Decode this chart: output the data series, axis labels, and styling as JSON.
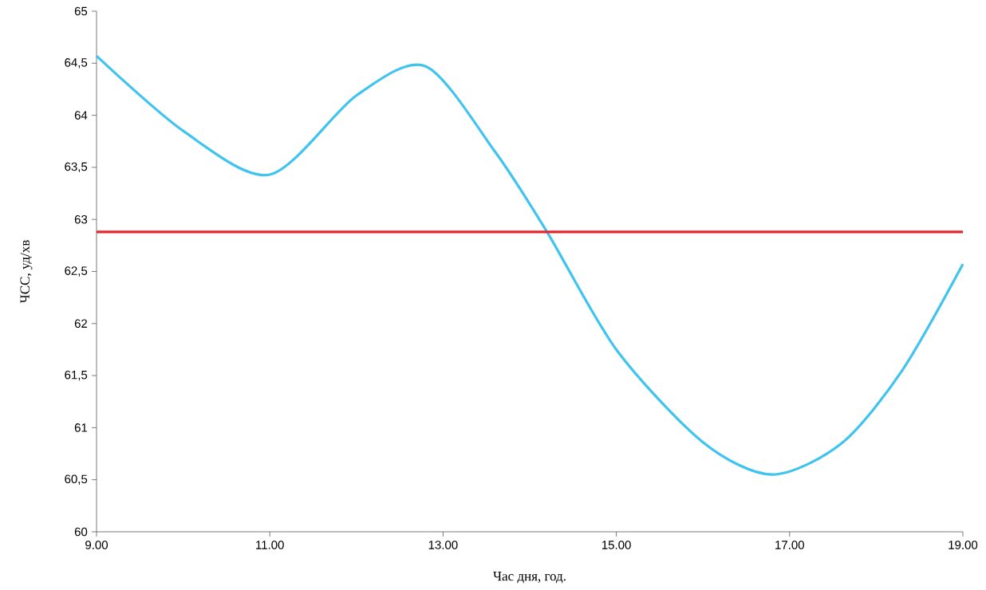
{
  "chart_data": {
    "type": "line",
    "xlabel": "Час дня, год.",
    "ylabel": "ЧСС, уд/хв",
    "series": [
      {
        "color": "#3fc3ef",
        "x": [
          9,
          10,
          11,
          12,
          12.8,
          13.6,
          14.2,
          15,
          16,
          16.8,
          17.6,
          18.3,
          19
        ],
        "values": [
          64.57,
          63.85,
          63.43,
          64.19,
          64.47,
          63.65,
          62.88,
          61.75,
          60.86,
          60.55,
          60.85,
          61.55,
          62.57
        ]
      }
    ],
    "ref_lines": [
      {
        "axis": "y",
        "value": 62.88,
        "color": "#e8262a"
      }
    ],
    "xlim": [
      9,
      19
    ],
    "ylim": [
      60,
      65
    ],
    "xticks": [
      {
        "value": 9,
        "label": "9.00"
      },
      {
        "value": 11,
        "label": "11.00"
      },
      {
        "value": 13,
        "label": "13.00"
      },
      {
        "value": 15,
        "label": "15.00"
      },
      {
        "value": 17,
        "label": "17.00"
      },
      {
        "value": 19,
        "label": "19.00"
      }
    ],
    "yticks": [
      60,
      {
        "value": 60.5,
        "label": "60,5"
      },
      61,
      {
        "value": 61.5,
        "label": "61,5"
      },
      62,
      {
        "value": 62.5,
        "label": "62,5"
      },
      63,
      {
        "value": 63.5,
        "label": "63,5"
      },
      64,
      {
        "value": 64.5,
        "label": "64,5"
      },
      65
    ],
    "grid": false,
    "marker": "none",
    "line_style": "solid"
  }
}
